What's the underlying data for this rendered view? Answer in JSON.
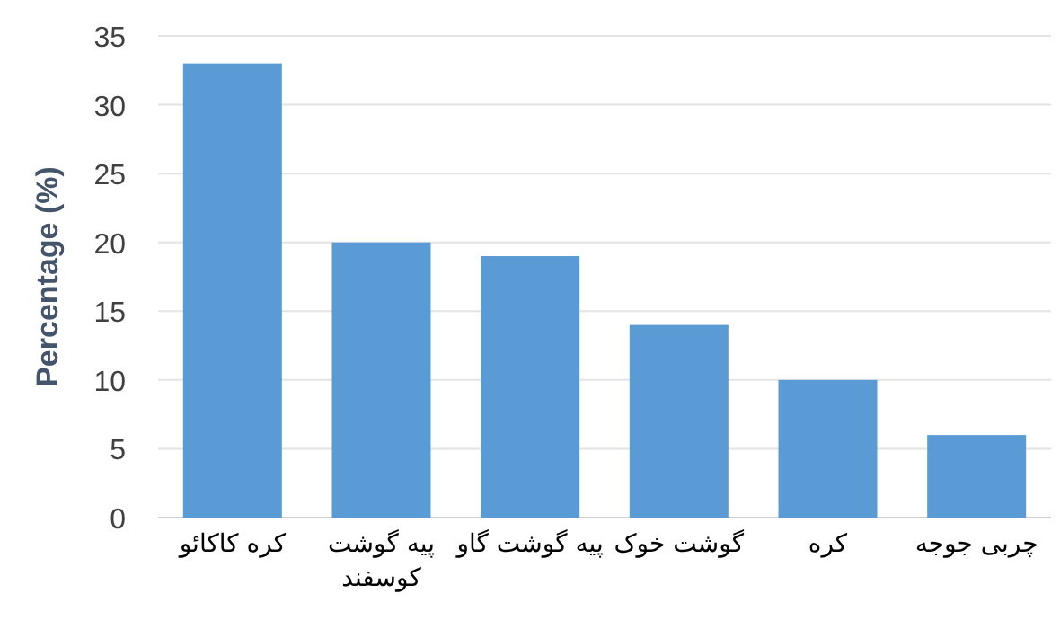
{
  "chart_data": {
    "type": "bar",
    "ylabel": "Percentage (%)",
    "categories": [
      "کره کاکائو",
      "پیه گوشت کوسفند",
      "پیه گوشت گاو",
      "گوشت خوک",
      "کره",
      "چربی جوجه"
    ],
    "values": [
      33,
      20,
      19,
      14,
      10,
      6
    ],
    "color": "#5b9bd5",
    "ylim": [
      0,
      35
    ],
    "yticks": [
      0,
      5,
      10,
      15,
      20,
      25,
      30,
      35
    ],
    "grid": "y"
  }
}
